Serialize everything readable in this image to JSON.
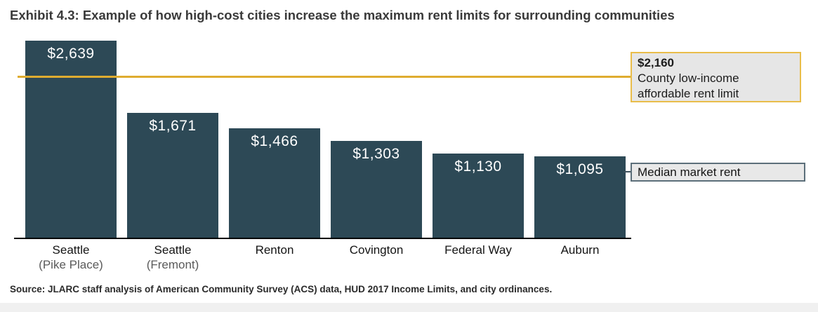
{
  "title": "Exhibit 4.3: Example of how high-cost cities increase the maximum rent limits for surrounding communities",
  "chart_data": {
    "type": "bar",
    "categories": [
      "Seattle",
      "Seattle",
      "Renton",
      "Covington",
      "Federal Way",
      "Auburn"
    ],
    "category_sublabels": [
      "(Pike Place)",
      "(Fremont)",
      "",
      "",
      "",
      ""
    ],
    "values": [
      2639,
      1671,
      1466,
      1303,
      1130,
      1095
    ],
    "value_labels": [
      "$2,639",
      "$1,671",
      "$1,466",
      "$1,303",
      "$1,130",
      "$1,095"
    ],
    "title": "Exhibit 4.3: Example of how high-cost cities increase the maximum rent limits for surrounding communities",
    "xlabel": "",
    "ylabel": "",
    "ylim": [
      0,
      2800
    ],
    "grid": false,
    "legend": "none",
    "bar_color": "#2d4956",
    "threshold_line": {
      "value": 2160,
      "label_value": "$2,160",
      "label_lines": [
        "County low-income",
        "affordable rent limit"
      ],
      "color": "#dfac30"
    },
    "median_annotation": {
      "label": "Median market rent"
    }
  },
  "source": "Source: JLARC staff analysis of American Community Survey (ACS) data, HUD 2017 Income Limits, and city ordinances.",
  "colors": {
    "bar": "#2d4956",
    "threshold_line": "#dfac30",
    "threshold_box_border": "#e9bd4a",
    "annotation_box_fill": "#e6e6e6",
    "median_box_border": "#5c6f7a"
  }
}
